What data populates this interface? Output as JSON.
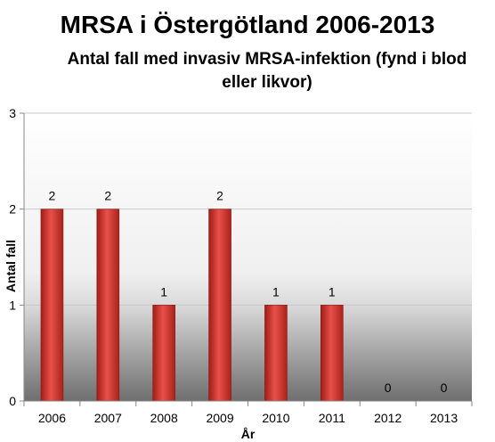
{
  "chart_data": {
    "type": "bar",
    "title": "MRSA i Östergötland 2006-2013",
    "subtitle": "Antal fall med invasiv MRSA-infektion (fynd i blod eller likvor)",
    "xlabel": "År",
    "ylabel": "Antal fall",
    "categories": [
      "2006",
      "2007",
      "2008",
      "2009",
      "2010",
      "2011",
      "2012",
      "2013"
    ],
    "values": [
      2,
      2,
      1,
      2,
      1,
      1,
      0,
      0
    ],
    "data_labels": [
      "2",
      "2",
      "1",
      "2",
      "1",
      "1",
      "0",
      "0"
    ],
    "ylim": [
      0,
      3
    ],
    "yticks": [
      "0",
      "1",
      "2",
      "3"
    ],
    "grid": true,
    "legend": "none",
    "colors": {
      "bar": "#c0392b",
      "bar_light": "#e8706a",
      "grid": "#c8c8c8"
    }
  }
}
